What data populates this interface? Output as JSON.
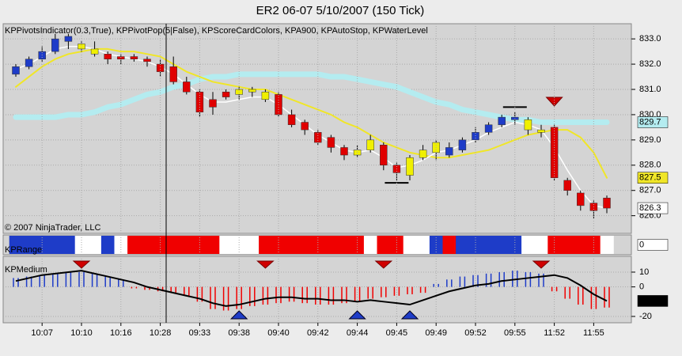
{
  "chart_data": [
    {
      "type": "candlestick",
      "title": "ER2 06-07  5/10/2007  (150 Tick)",
      "subtitle": "KPPivotsIndicator(0.3,True), KPPivotPop(5|False), KPScoreCardColors, KPA900, KPAutoStop, KPWaterLevel",
      "annotation": "© 2007 NinjaTrader, LLC",
      "ylim": [
        825.3,
        833.6
      ],
      "yticks": [
        {
          "value": 826,
          "label": "826.0"
        },
        {
          "value": 827,
          "label": "827.0"
        },
        {
          "value": 828,
          "label": "828.0"
        },
        {
          "value": 829,
          "label": "829.0"
        },
        {
          "value": 830,
          "label": "830.0"
        },
        {
          "value": 831,
          "label": "831.0"
        },
        {
          "value": 832,
          "label": "832.0"
        },
        {
          "value": 833,
          "label": "833.0"
        }
      ],
      "grid": true,
      "open": [
        831.6,
        831.9,
        832.2,
        832.5,
        832.9,
        832.8,
        832.6,
        832.4,
        832.3,
        832.3,
        832.2,
        832.0,
        831.9,
        831.3,
        830.9,
        830.6,
        830.9,
        830.8,
        831.0,
        830.9,
        830.8,
        830.0,
        829.7,
        829.3,
        829.1,
        828.7,
        828.4,
        828.6,
        828.8,
        828.0,
        827.6,
        828.3,
        828.5,
        828.4,
        828.6,
        829.0,
        829.3,
        829.6,
        829.9,
        829.8,
        829.4,
        829.5,
        827.4,
        826.9,
        826.5,
        826.7
      ],
      "high": [
        832.0,
        832.3,
        832.7,
        833.2,
        833.2,
        832.9,
        832.9,
        832.5,
        832.4,
        832.4,
        832.3,
        832.2,
        832.3,
        831.5,
        831.0,
        830.9,
        831.0,
        831.1,
        831.1,
        831.0,
        830.9,
        830.2,
        829.8,
        829.4,
        829.2,
        828.8,
        828.8,
        829.2,
        828.9,
        828.1,
        828.4,
        828.8,
        829.0,
        828.9,
        829.1,
        829.5,
        829.7,
        830.0,
        830.1,
        829.9,
        829.6,
        829.6,
        827.5,
        827.0,
        826.6,
        826.8
      ],
      "low": [
        831.5,
        831.8,
        832.1,
        832.4,
        832.6,
        832.5,
        832.3,
        832.0,
        832.0,
        832.1,
        831.9,
        831.5,
        831.2,
        830.8,
        829.9,
        830.0,
        830.6,
        830.6,
        830.7,
        830.5,
        829.9,
        829.5,
        829.2,
        828.8,
        828.5,
        828.2,
        828.3,
        828.5,
        827.8,
        827.4,
        827.4,
        828.2,
        828.2,
        828.3,
        828.5,
        828.9,
        829.2,
        829.5,
        829.6,
        829.2,
        829.1,
        827.4,
        826.8,
        826.2,
        825.9,
        826.1
      ],
      "close": [
        831.9,
        832.2,
        832.5,
        833.0,
        833.1,
        832.6,
        832.4,
        832.2,
        832.2,
        832.2,
        832.1,
        831.7,
        831.3,
        830.9,
        830.1,
        830.3,
        830.7,
        831.0,
        830.9,
        830.6,
        830.0,
        829.6,
        829.4,
        828.9,
        828.7,
        828.4,
        828.6,
        829.0,
        828.0,
        827.7,
        828.3,
        828.6,
        828.9,
        828.7,
        829.0,
        829.3,
        829.6,
        829.9,
        829.8,
        829.4,
        829.3,
        827.5,
        827.0,
        826.4,
        826.2,
        826.3
      ],
      "candle_colors": [
        "#1e3cc8",
        "#1e3cc8",
        "#1e3cc8",
        "#1e3cc8",
        "#1e3cc8",
        "#f0f000",
        "#f0f000",
        "#e00000",
        "#e00000",
        "#e00000",
        "#e00000",
        "#e00000",
        "#e00000",
        "#e00000",
        "#e00000",
        "#e00000",
        "#e00000",
        "#f0f000",
        "#f0f000",
        "#f0f000",
        "#e00000",
        "#e00000",
        "#e00000",
        "#e00000",
        "#e00000",
        "#e00000",
        "#f0f000",
        "#f0f000",
        "#e00000",
        "#e00000",
        "#f0f000",
        "#f0f000",
        "#f0f000",
        "#1e3cc8",
        "#1e3cc8",
        "#1e3cc8",
        "#1e3cc8",
        "#1e3cc8",
        "#1e3cc8",
        "#f0f000",
        "#f0f000",
        "#e00000",
        "#e00000",
        "#e00000",
        "#e00000",
        "#e00000"
      ],
      "series": [
        {
          "color": "#b4ecf0",
          "width": 7,
          "values": [
            829.9,
            829.9,
            829.9,
            829.9,
            830.0,
            830.0,
            830.1,
            830.3,
            830.4,
            830.6,
            830.8,
            830.9,
            831.1,
            831.2,
            831.4,
            831.5,
            831.5,
            831.6,
            831.6,
            831.6,
            831.6,
            831.6,
            831.6,
            831.6,
            831.5,
            831.5,
            831.4,
            831.3,
            831.2,
            831.1,
            830.9,
            830.7,
            830.5,
            830.4,
            830.2,
            830.1,
            830.0,
            829.9,
            829.8,
            829.8,
            829.7,
            829.7,
            829.7,
            829.7,
            829.7,
            829.7
          ]
        },
        {
          "color": "#f0e628",
          "width": 2,
          "values": [
            831.1,
            831.5,
            831.9,
            832.2,
            832.4,
            832.5,
            832.6,
            832.6,
            832.5,
            832.5,
            832.4,
            832.3,
            832.0,
            831.7,
            831.5,
            831.3,
            831.2,
            831.1,
            831.0,
            831.0,
            830.8,
            830.6,
            830.4,
            830.2,
            830.0,
            829.7,
            829.5,
            829.2,
            828.9,
            828.7,
            828.5,
            828.4,
            828.3,
            828.3,
            828.4,
            828.5,
            828.6,
            828.8,
            829.0,
            829.2,
            829.3,
            829.4,
            829.4,
            829.1,
            828.5,
            827.5
          ]
        },
        {
          "color": "#ffffff",
          "width": 1.5,
          "values": [
            831.8,
            832.0,
            832.3,
            832.6,
            832.7,
            832.7,
            832.6,
            832.4,
            832.3,
            832.2,
            832.1,
            831.9,
            831.6,
            831.2,
            830.8,
            830.5,
            830.5,
            830.6,
            830.7,
            830.7,
            830.4,
            830.0,
            829.6,
            829.2,
            828.9,
            828.6,
            828.5,
            828.6,
            828.3,
            827.9,
            828.0,
            828.2,
            828.5,
            828.6,
            828.8,
            829.0,
            829.3,
            829.5,
            829.7,
            829.6,
            829.4,
            828.7,
            827.8,
            827.0,
            826.4,
            826.3
          ]
        }
      ],
      "pivots": [
        {
          "index": 38,
          "value": 830.3
        },
        {
          "index": 29,
          "value": 827.3
        }
      ],
      "signals": [
        {
          "index": 41,
          "value": 830.5
        }
      ]
    },
    {
      "type": "ribbon",
      "label": "KPRange",
      "value": 0,
      "colors": [
        "#1e3cc8",
        "#1e3cc8",
        "#1e3cc8",
        "#1e3cc8",
        "#1e3cc8",
        "#ffffff",
        "#ffffff",
        "#1e3cc8",
        "#ffffff",
        "#f00000",
        "#f00000",
        "#f00000",
        "#f00000",
        "#f00000",
        "#f00000",
        "#f00000",
        "#ffffff",
        "#ffffff",
        "#ffffff",
        "#f00000",
        "#f00000",
        "#f00000",
        "#f00000",
        "#f00000",
        "#f00000",
        "#f00000",
        "#f00000",
        "#ffffff",
        "#f00000",
        "#f00000",
        "#ffffff",
        "#ffffff",
        "#1e3cc8",
        "#f00000",
        "#1e3cc8",
        "#1e3cc8",
        "#1e3cc8",
        "#1e3cc8",
        "#1e3cc8",
        "#ffffff",
        "#ffffff",
        "#f00000",
        "#f00000",
        "#f00000",
        "#f00000",
        "#ffffff"
      ]
    },
    {
      "type": "oscillator",
      "label": "KPMedium",
      "ylim": [
        -24.3,
        20.7
      ],
      "yticks": [
        10,
        0,
        -20
      ],
      "grid": true,
      "positive_color": "#1e3cc8",
      "negative_color": "#f00000",
      "histogram": [
        6,
        7,
        8,
        9,
        10,
        10,
        9,
        7,
        5,
        -1,
        -2,
        -3,
        -4,
        -6,
        -10,
        -15,
        -16,
        -15,
        -13,
        -12,
        -11,
        -10,
        -11,
        -12,
        -12,
        -11,
        -10,
        -8,
        -7,
        -6,
        -5,
        -4,
        2,
        5,
        7,
        8,
        9,
        10,
        11,
        10,
        9,
        -3,
        -8,
        -12,
        -15,
        -14
      ],
      "line": [
        4,
        6,
        8,
        9,
        10,
        11,
        9,
        7,
        5,
        3,
        0,
        -2,
        -4,
        -6,
        -8,
        -11,
        -13,
        -12,
        -10,
        -8,
        -7,
        -7,
        -8,
        -8,
        -9,
        -9,
        -10,
        -9,
        -10,
        -11,
        -12,
        -9,
        -6,
        -3,
        -1,
        1,
        2,
        4,
        5,
        6,
        7,
        8,
        6,
        1,
        -5,
        -9.53
      ],
      "sell_signals": [
        5,
        19,
        28,
        40
      ],
      "buy_signals": [
        17,
        26,
        30
      ],
      "categories": [
        null,
        null,
        "10:07",
        null,
        null,
        "10:10",
        null,
        null,
        "10:16",
        null,
        null,
        "10:28",
        null,
        null,
        "09:33",
        null,
        null,
        "09:38",
        null,
        null,
        "09:40",
        null,
        null,
        "09:42",
        null,
        null,
        "09:44",
        null,
        null,
        "09:45",
        null,
        null,
        "09:49",
        null,
        null,
        "09:52",
        null,
        null,
        "09:55",
        null,
        null,
        "11:52",
        null,
        null,
        "11:55",
        null
      ]
    }
  ]
}
